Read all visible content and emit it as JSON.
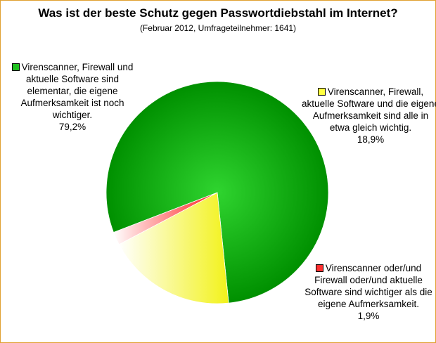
{
  "chart_data": {
    "type": "pie",
    "title": "Was ist der beste Schutz gegen Passwortdiebstahl im Internet?",
    "subtitle": "(Februar 2012, Umfrageteilnehmer: 1641)",
    "slices": [
      {
        "label": "Virenscanner, Firewall und aktuelle Software sind elementar, die eigene Aufmerksamkeit ist noch wichtiger.",
        "value": 79.2,
        "value_label": "79,2%",
        "color": "#1fc01f"
      },
      {
        "label": "Virenscanner, Firewall, aktuelle Software und die eigene Aufmerksamkeit sind alle in etwa gleich wichtig.",
        "value": 18.9,
        "value_label": "18,9%",
        "color": "#ffff40"
      },
      {
        "label": "Virenscanner oder/und Firewall oder/und aktuelle Software sind wichtiger als die eigene Aufmerksamkeit.",
        "value": 1.9,
        "value_label": "1,9%",
        "color": "#ff3030"
      }
    ],
    "legend": "labels beside slices"
  }
}
